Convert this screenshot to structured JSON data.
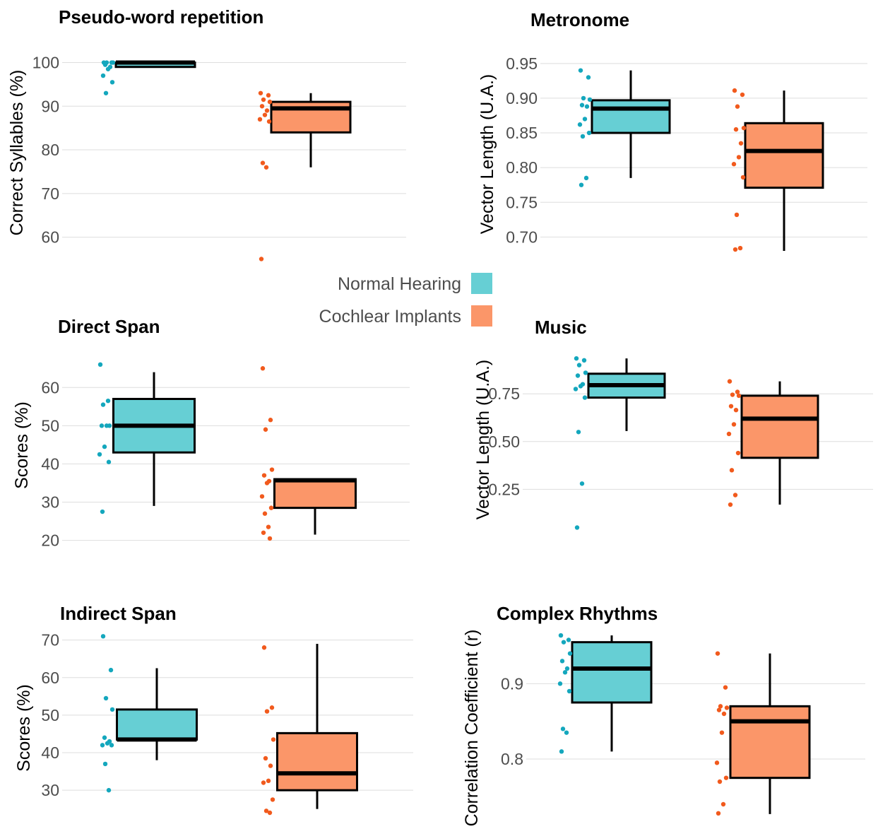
{
  "legend": {
    "items": [
      {
        "label": "Normal Hearing",
        "color": "#66cfd4"
      },
      {
        "label": "Cochlear Implants",
        "color": "#fb9669"
      }
    ]
  },
  "colors": {
    "nh_fill": "#66cfd4",
    "ci_fill": "#fb9669",
    "nh_point": "#14a7bd",
    "ci_point": "#f15a1d"
  },
  "chart_data": [
    {
      "type": "box",
      "title": "Pseudo-word repetition",
      "ylabel": "Correct Syllables (%)",
      "ylim": [
        52,
        103
      ],
      "yticks": [
        60,
        70,
        80,
        90,
        100
      ],
      "yticklabels": [
        "60",
        "70",
        "80",
        "90",
        "100"
      ],
      "grid": true,
      "series": [
        {
          "group": "Normal Hearing",
          "q1": 99,
          "median": 100,
          "q3": 100,
          "whisker_low": 99,
          "whisker_high": 100,
          "points": [
            100,
            100,
            100,
            100,
            99.5,
            99,
            98.5,
            97,
            95.5,
            93
          ]
        },
        {
          "group": "Cochlear Implants",
          "q1": 84,
          "median": 89.5,
          "q3": 91,
          "whisker_low": 76,
          "whisker_high": 93,
          "points": [
            93,
            92.5,
            91.5,
            91,
            90,
            89,
            88,
            87,
            86.5,
            77,
            76,
            55
          ]
        }
      ]
    },
    {
      "type": "box",
      "title": "Metronome",
      "ylabel": "Vector Length (U.A.)",
      "ylim": [
        0.68,
        0.96
      ],
      "yticks": [
        0.7,
        0.75,
        0.8,
        0.85,
        0.9,
        0.95
      ],
      "yticklabels": [
        "0.70",
        "0.75",
        "0.80",
        "0.85",
        "0.90",
        "0.95"
      ],
      "grid": true,
      "series": [
        {
          "group": "Normal Hearing",
          "q1": 0.85,
          "median": 0.885,
          "q3": 0.897,
          "whisker_low": 0.785,
          "whisker_high": 0.94,
          "points": [
            0.94,
            0.93,
            0.9,
            0.898,
            0.89,
            0.888,
            0.87,
            0.862,
            0.85,
            0.845,
            0.785,
            0.775
          ]
        },
        {
          "group": "Cochlear Implants",
          "q1": 0.771,
          "median": 0.824,
          "q3": 0.864,
          "whisker_low": 0.68,
          "whisker_high": 0.911,
          "points": [
            0.911,
            0.905,
            0.888,
            0.857,
            0.855,
            0.835,
            0.815,
            0.805,
            0.786,
            0.732,
            0.684,
            0.682
          ]
        }
      ]
    },
    {
      "type": "box",
      "title": "Direct Span",
      "ylabel": "Scores (%)",
      "ylim": [
        19,
        68
      ],
      "yticks": [
        20,
        30,
        40,
        50,
        60
      ],
      "yticklabels": [
        "20",
        "30",
        "40",
        "50",
        "60"
      ],
      "grid": true,
      "series": [
        {
          "group": "Normal Hearing",
          "q1": 43,
          "median": 50,
          "q3": 57,
          "whisker_low": 29,
          "whisker_high": 64,
          "points": [
            66,
            56.5,
            55.5,
            50,
            50,
            50,
            44.5,
            42.5,
            40.5,
            27.5
          ]
        },
        {
          "group": "Cochlear Implants",
          "q1": 28.5,
          "median": 35.7,
          "q3": 36,
          "whisker_low": 21.5,
          "whisker_high": 36,
          "points": [
            65,
            51.5,
            49,
            38.5,
            37,
            35.5,
            35,
            31.5,
            28.5,
            27,
            23.5,
            22,
            20.5
          ]
        }
      ]
    },
    {
      "type": "box",
      "title": "Music",
      "ylabel": "Vector Length (U.A.)",
      "ylim": [
        0,
        0.98
      ],
      "yticks": [
        0.25,
        0.5,
        0.75
      ],
      "yticklabels": [
        "0.25",
        "0.50",
        "0.75"
      ],
      "grid": true,
      "series": [
        {
          "group": "Normal Hearing",
          "q1": 0.73,
          "median": 0.795,
          "q3": 0.855,
          "whisker_low": 0.555,
          "whisker_high": 0.935,
          "points": [
            0.935,
            0.925,
            0.9,
            0.86,
            0.845,
            0.8,
            0.79,
            0.775,
            0.73,
            0.55,
            0.28,
            0.05
          ]
        },
        {
          "group": "Cochlear Implants",
          "q1": 0.415,
          "median": 0.62,
          "q3": 0.74,
          "whisker_low": 0.17,
          "whisker_high": 0.815,
          "points": [
            0.815,
            0.76,
            0.745,
            0.74,
            0.685,
            0.665,
            0.59,
            0.54,
            0.44,
            0.35,
            0.22,
            0.17
          ]
        }
      ]
    },
    {
      "type": "box",
      "title": "Indirect Span",
      "ylabel": "Scores (%)",
      "ylim": [
        24,
        72
      ],
      "yticks": [
        30,
        40,
        50,
        60,
        70
      ],
      "yticklabels": [
        "30",
        "40",
        "50",
        "60",
        "70"
      ],
      "grid": true,
      "series": [
        {
          "group": "Normal Hearing",
          "q1": 43.5,
          "median": 43.5,
          "q3": 51.5,
          "whisker_low": 38,
          "whisker_high": 62.5,
          "points": [
            71,
            62,
            54.5,
            51.5,
            44,
            43,
            42.5,
            42,
            42,
            37,
            30
          ]
        },
        {
          "group": "Cochlear Implants",
          "q1": 30,
          "median": 34.5,
          "q3": 45.2,
          "whisker_low": 25,
          "whisker_high": 69,
          "points": [
            68,
            52,
            51,
            43.5,
            38.5,
            36.5,
            32.5,
            32,
            27.5,
            24.5,
            24
          ]
        }
      ]
    },
    {
      "type": "box",
      "title": "Complex Rhythms",
      "ylabel": "Correlation Coefficient (r)",
      "ylim": [
        0.71,
        0.965
      ],
      "yticks": [
        0.8,
        0.9
      ],
      "yticklabels": [
        "0.8",
        "0.9"
      ],
      "grid": true,
      "series": [
        {
          "group": "Normal Hearing",
          "q1": 0.875,
          "median": 0.92,
          "q3": 0.955,
          "whisker_low": 0.81,
          "whisker_high": 0.964,
          "points": [
            0.964,
            0.958,
            0.955,
            0.94,
            0.93,
            0.92,
            0.915,
            0.9,
            0.89,
            0.84,
            0.835,
            0.81
          ]
        },
        {
          "group": "Cochlear Implants",
          "q1": 0.775,
          "median": 0.85,
          "q3": 0.87,
          "whisker_low": 0.727,
          "whisker_high": 0.94,
          "points": [
            0.94,
            0.895,
            0.87,
            0.868,
            0.865,
            0.86,
            0.835,
            0.795,
            0.775,
            0.77,
            0.74,
            0.728
          ]
        }
      ]
    }
  ]
}
